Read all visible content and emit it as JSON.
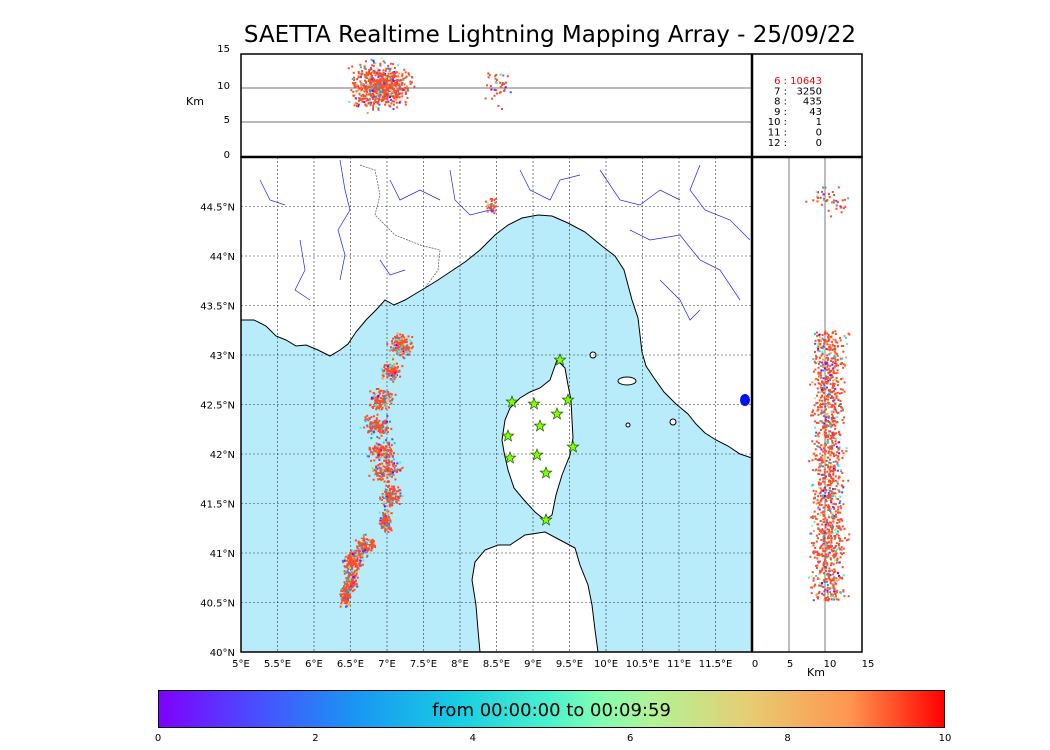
{
  "title": "SAETTA Realtime Lightning Mapping Array - 25/09/22",
  "altitude_panel": {
    "ylabel": "Km",
    "yticks": [
      "15",
      "10",
      "5",
      "0"
    ]
  },
  "side_panel": {
    "xlabel": "Km",
    "xticks": [
      "0",
      "5",
      "10",
      "15"
    ]
  },
  "map": {
    "lon_ticks": [
      "5°E",
      "5.5°E",
      "6°E",
      "6.5°E",
      "7°E",
      "7.5°E",
      "8°E",
      "8.5°E",
      "9°E",
      "9.5°E",
      "10°E",
      "10.5°E",
      "11°E",
      "11.5°E"
    ],
    "lat_ticks": [
      "44.5°N",
      "44°N",
      "43.5°N",
      "43°N",
      "42.5°N",
      "42°N",
      "41.5°N",
      "41°N",
      "40.5°N",
      "40°N"
    ],
    "lon_range": [
      5,
      12
    ],
    "lat_range": [
      40,
      45
    ]
  },
  "stations": {
    "rows": [
      {
        "label": "6  :",
        "value": "10643",
        "color": "#ff0000"
      },
      {
        "label": "7  :",
        "value": "3250",
        "color": "#000000"
      },
      {
        "label": "8  :",
        "value": "435",
        "color": "#000000"
      },
      {
        "label": "9  :",
        "value": "43",
        "color": "#000000"
      },
      {
        "label": "10  :",
        "value": "1",
        "color": "#000000"
      },
      {
        "label": "11  :",
        "value": "0",
        "color": "#000000"
      },
      {
        "label": "12  :",
        "value": "0",
        "color": "#000000"
      }
    ]
  },
  "colorbar": {
    "caption": "from 00:00:00 to 00:09:59",
    "ticks": [
      "0",
      "2",
      "4",
      "6",
      "8",
      "10"
    ]
  },
  "colors": {
    "sea": "#b8ecfa",
    "rivers": "#2020ff",
    "station_marker": "#7fff00"
  }
}
